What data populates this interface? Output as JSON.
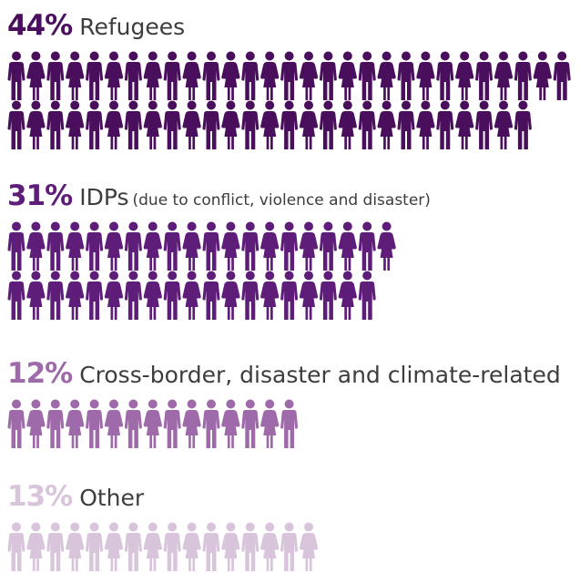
{
  "chart_data": {
    "type": "pictograph",
    "unit": "",
    "categories": [
      {
        "percent_label": "44%",
        "label": "Refugees",
        "note": "",
        "value": 44,
        "icon": "person-icon",
        "color": "#4a0f5c",
        "rows": [
          29,
          27
        ]
      },
      {
        "percent_label": "31%",
        "label": "IDPs",
        "note": "(due to conflict, violence and disaster)",
        "value": 31,
        "icon": "person-icon",
        "color": "#5e1d78",
        "rows": [
          20,
          19
        ]
      },
      {
        "percent_label": "12%",
        "label": "Cross-border, disaster and climate-related",
        "note": "",
        "value": 12,
        "icon": "person-icon",
        "color": "#9f6aa9",
        "rows": [
          15
        ]
      },
      {
        "percent_label": "13%",
        "label": "Other",
        "note": "",
        "value": 13,
        "icon": "person-icon",
        "color": "#d8c4db",
        "rows": [
          16
        ]
      }
    ]
  }
}
